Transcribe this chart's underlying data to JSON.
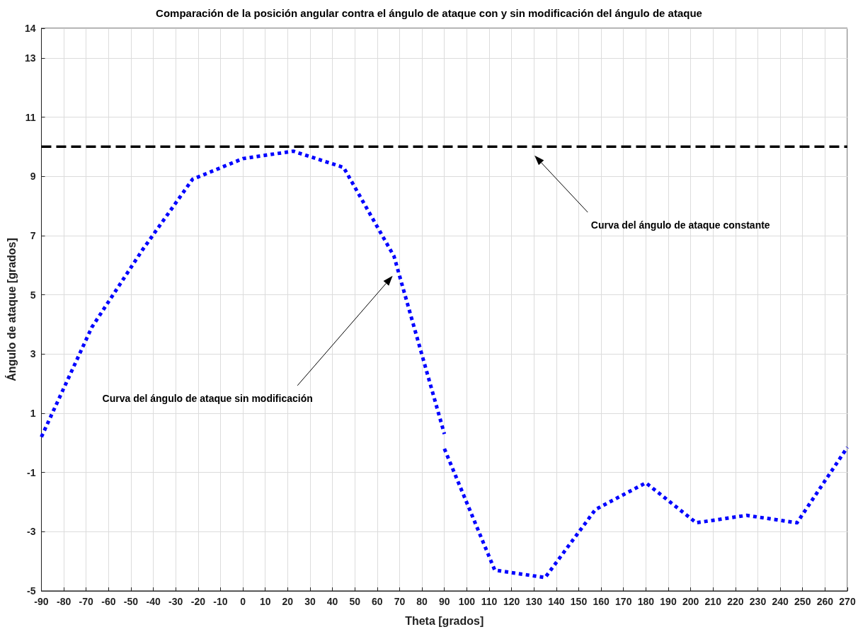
{
  "chart_data": {
    "type": "line",
    "title": "Comparación de la posición angular contra el ángulo de ataque con y sin modificación del ángulo de ataque",
    "xlabel": "Theta [grados]",
    "ylabel": "Ángulo de ataque [grados]",
    "series": [
      {
        "color": "#0000ff",
        "line_style": "dotted",
        "x": [
          -90,
          -67.5,
          -45,
          -22.5,
          0,
          22.5,
          45,
          67.5,
          90
        ],
        "values": [
          0.2,
          3.9,
          6.5,
          8.9,
          9.6,
          9.85,
          9.3,
          6.3,
          0.3
        ]
      },
      {
        "color": "#0000ff",
        "line_style": "dotted",
        "x": [
          90,
          112.5,
          135,
          157.5,
          180,
          202.5,
          225,
          247.5,
          270
        ],
        "values": [
          -0.2,
          -4.3,
          -4.55,
          -2.25,
          -1.35,
          -2.7,
          -2.45,
          -2.7,
          -0.15
        ]
      },
      {
        "color": "#000000",
        "line_style": "dashed",
        "x": [
          -90,
          270
        ],
        "values": [
          10,
          10
        ]
      }
    ],
    "annotations": [
      "Curva del ángulo de ataque constante",
      "Curva del ángulo de ataque sin modificación"
    ],
    "xlim": [
      -90,
      270
    ],
    "xticks": [
      -90,
      -80,
      -70,
      -60,
      -50,
      -40,
      -30,
      -20,
      -10,
      0,
      10,
      20,
      30,
      40,
      50,
      60,
      70,
      80,
      90,
      100,
      110,
      120,
      130,
      140,
      150,
      160,
      170,
      180,
      190,
      200,
      210,
      220,
      230,
      240,
      250,
      260,
      270
    ],
    "ylim": [
      -5,
      14
    ],
    "yticks": [
      -5,
      -3,
      -1,
      1,
      3,
      5,
      7,
      9,
      11,
      13,
      14
    ],
    "grid": true,
    "marker": "none"
  }
}
